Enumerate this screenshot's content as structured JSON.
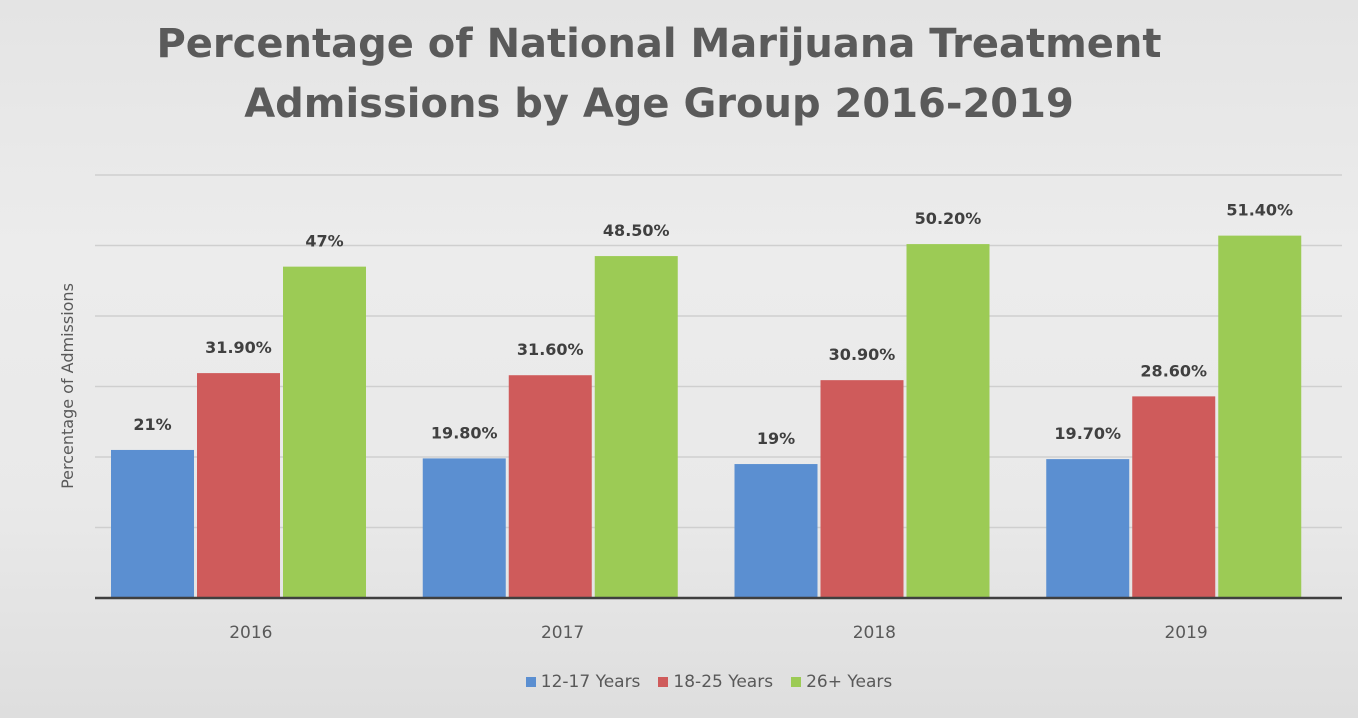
{
  "chart_data": {
    "type": "bar",
    "title_lines": [
      "Percentage of National Marijuana Treatment",
      "Admissions by Age Group 2016-2019"
    ],
    "ylabel": "Percentage of Admissions",
    "xlabel": "",
    "ylim": [
      0,
      60
    ],
    "grid": true,
    "legend_position": "bottom",
    "categories": [
      "2016",
      "2017",
      "2018",
      "2019"
    ],
    "series": [
      {
        "name": "12-17 Years",
        "color": "#5b8fd1",
        "values": [
          21,
          19.8,
          19,
          19.7
        ],
        "labels": [
          "21%",
          "19.80%",
          "19%",
          "19.70%"
        ]
      },
      {
        "name": "18-25 Years",
        "color": "#cf5b5b",
        "values": [
          31.9,
          31.6,
          30.9,
          28.6
        ],
        "labels": [
          "31.90%",
          "31.60%",
          "30.90%",
          "28.60%"
        ]
      },
      {
        "name": "26+ Years",
        "color": "#9ccb55",
        "values": [
          47,
          48.5,
          50.2,
          51.4
        ],
        "labels": [
          "47%",
          "48.50%",
          "50.20%",
          "51.40%"
        ]
      }
    ]
  }
}
